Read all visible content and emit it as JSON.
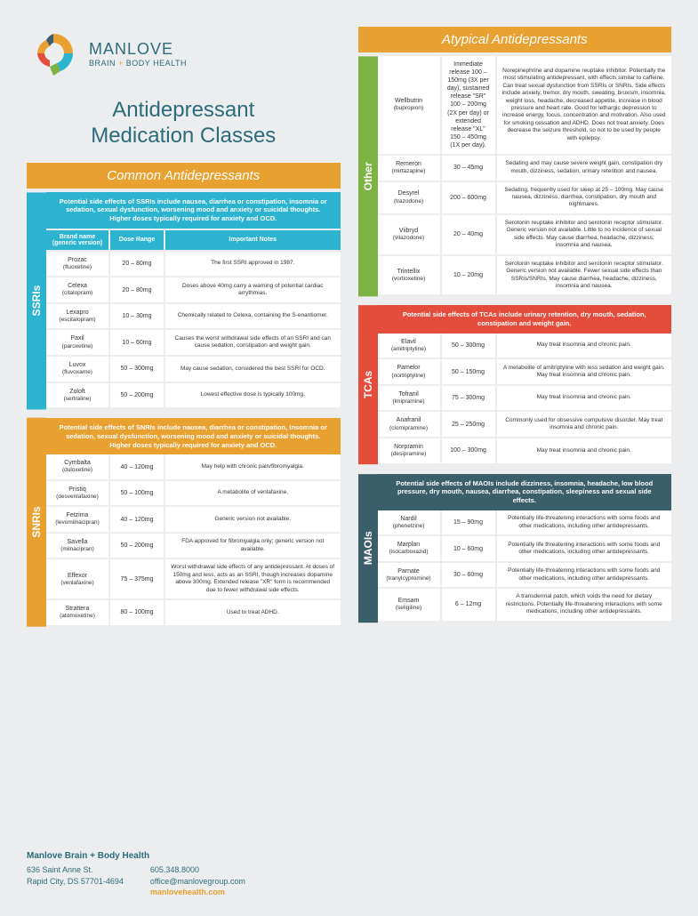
{
  "logo": {
    "main": "MANLOVE",
    "sub_a": "BRAIN ",
    "sub_plus": "+",
    "sub_b": " BODY HEALTH"
  },
  "title_a": "Antidepressant",
  "title_b": "Medication Classes",
  "hdr_common": "Common Antidepressants",
  "hdr_atypical": "Atypical Antidepressants",
  "col_headers": {
    "name": "Brand name (generic version)",
    "dose": "Dose Range",
    "notes": "Important Notes"
  },
  "colors": {
    "orange": "#e8a030",
    "teal": "#2c6b7a",
    "ssri": "#2bb3d0",
    "snri": "#e8a030",
    "other": "#7cb342",
    "tca": "#e44c3c",
    "maoi": "#3a5e6a"
  },
  "ssri": {
    "label": "SSRIs",
    "side_effects": "Potential side effects of SSRIs include nausea, diarrhea or constipation, insomnia or sedation, sexual dysfunction, worsening mood and anxiety or suicidal thoughts. Higher doses typically required for anxiety and OCD.",
    "meds": [
      {
        "brand": "Prozac",
        "generic": "(fluoxetine)",
        "dose": "20 – 80mg",
        "notes": "The first SSRI approved in 1987."
      },
      {
        "brand": "Celexa",
        "generic": "(citalopram)",
        "dose": "20 – 80mg",
        "notes": "Doses above 40mg carry a warning of potential cardiac arrythmias."
      },
      {
        "brand": "Lexapro",
        "generic": "(escitalopram)",
        "dose": "10 – 30mg",
        "notes": "Chemically related to Celexa, containing the S-enantiomer."
      },
      {
        "brand": "Paxil",
        "generic": "(paroxetine)",
        "dose": "10 – 60mg",
        "notes": "Causes the worst withdrawal side effects of an SSRI and can cause sedation, constipation and weight gain."
      },
      {
        "brand": "Luvox",
        "generic": "(fluvoxame)",
        "dose": "50 – 300mg",
        "notes": "May cause sedation, considered the best SSRI for OCD."
      },
      {
        "brand": "Zoloft",
        "generic": "(sertraline)",
        "dose": "50 – 200mg",
        "notes": "Lowest effective dose is typically 100mg."
      }
    ]
  },
  "snri": {
    "label": "SNRIs",
    "side_effects": "Potential side effects of SNRIs include nausea, diarrhea or constipation, insomnia or sedation, sexual dysfunction, worsening mood and anxiety or suicidal thoughts. Higher doses typically required for anxiety and OCD.",
    "meds": [
      {
        "brand": "Cymbalta",
        "generic": "(duloxetine)",
        "dose": "40 – 120mg",
        "notes": "May help with chronic pain/fibromyalgia."
      },
      {
        "brand": "Pristiq",
        "generic": "(desvenlafaxine)",
        "dose": "50 – 100mg",
        "notes": "A metabolite of venlafaxine."
      },
      {
        "brand": "Fetzima",
        "generic": "(levomilnacipran)",
        "dose": "40 – 120mg",
        "notes": "Generic version not available."
      },
      {
        "brand": "Savella",
        "generic": "(milnacipran)",
        "dose": "50 – 200mg",
        "notes": "FDA approved for fibromyalgia only; generic version not available."
      },
      {
        "brand": "Effexor",
        "generic": "(venlafaxine)",
        "dose": "75 – 375mg",
        "notes": "Worst withdrawal side effects of any antidepressant. At doses of 150mg and less, acts as an SSRI, though increases dopamine above 300mg. Extended release \"XR\" form is recommended due to fewer withdrawal side effects."
      },
      {
        "brand": "Strattera",
        "generic": "(atomoxetine)",
        "dose": "80 – 100mg",
        "notes": "Used to treat ADHD."
      }
    ]
  },
  "other": {
    "label": "Other",
    "meds": [
      {
        "brand": "Wellbutrin",
        "generic": "(bupropion)",
        "dose": "Immediate release 100 – 150mg (3X per day), sustained release \"SR\" 100 – 200mg (2X per day) or extended release \"XL\" 150 – 450mg (1X per day).",
        "notes": "Norepinephrine and dopamine reuptake inhibitor. Potentially the most stimulating antidepressant, with effects similar to caffeine. Can treat sexual dysfunction from SSRIs or SNRIs. Side effects include anxiety, tremor, dry mouth, sweating, bruxism, insomnia, weight loss, headache, decreased appetite, increase in blood pressure and heart rate. Good for lethargic depression to increase energy, focus, concentration and motivation. Also used for smoking cessation and ADHD. Does not treat anxiety. Does decrease the seizure threshold, so not to be used by people with epilepsy."
      },
      {
        "brand": "Remeron",
        "generic": "(mirtazapine)",
        "dose": "30 – 45mg",
        "notes": "Sedating and may cause severe weight gain, constipation dry mouth, dizziness, sedation, urinary retention and nausea."
      },
      {
        "brand": "Desyrel",
        "generic": "(trazodone)",
        "dose": "200 – 600mg",
        "notes": "Sedating, frequently used for sleep at 25 – 100mg. May cause nausea, dizziness, diarrhea, constipation, dry mouth and nightmares."
      },
      {
        "brand": "Viibryd",
        "generic": "(vilazodone)",
        "dose": "20 – 40mg",
        "notes": "Serotonin reuptake inhibitor and serotonin receptor stimulator. Generic version not available. Little to no incidence of sexual side effects. May cause diarrhea, headache, dizziness, insomnia and nausea."
      },
      {
        "brand": "Trintellix",
        "generic": "(vortioxetine)",
        "dose": "10 – 20mg",
        "notes": "Serotonin reuptake inhibitor and serotonin receptor stimulator. Generic version not available. Fewer sexual side effects than SSRIs/SNRIs. May cause diarrhea, headache, dizziness, insomnia and nausea."
      }
    ]
  },
  "tca": {
    "label": "TCAs",
    "side_effects": "Potential side effects of TCAs include urinary retention, dry mouth, sedation, constipation and weight gain.",
    "meds": [
      {
        "brand": "Elavil",
        "generic": "(amitriptyline)",
        "dose": "50 – 300mg",
        "notes": "May treat insomnia and chronic pain."
      },
      {
        "brand": "Pamelor",
        "generic": "(nortriptyline)",
        "dose": "50 – 150mg",
        "notes": "A metabolite of amitriptyline with less sedation and weight gain. May treat insomnia and chronic pain."
      },
      {
        "brand": "Tofranil",
        "generic": "(imipramine)",
        "dose": "75 – 300mg",
        "notes": "May treat insomnia and chronic pain."
      },
      {
        "brand": "Anafranil",
        "generic": "(clomipramine)",
        "dose": "25 – 250mg",
        "notes": "Commonly used for obsessive compulsive disorder. May treat insomnia and chronic pain."
      },
      {
        "brand": "Norpramin",
        "generic": "(desipramine)",
        "dose": "100 – 300mg",
        "notes": "May treat insomnia and chronic pain."
      }
    ]
  },
  "maoi": {
    "label": "MAOIs",
    "side_effects": "Potential side effects of MAOIs include dizziness, insomnia, headache, low blood pressure, dry mouth, nausea, diarrhea, constipation, sleepiness and sexual side effects.",
    "meds": [
      {
        "brand": "Nardil",
        "generic": "(phenelzine)",
        "dose": "15 – 90mg",
        "notes": "Potentially life-threatening interactions with some foods and other medications, including other antidepressants."
      },
      {
        "brand": "Marplan",
        "generic": "(isocarboxazid)",
        "dose": "10 – 60mg",
        "notes": "Potentially life threatening interactions with some foods and other medications, including other antidepressants."
      },
      {
        "brand": "Parnate",
        "generic": "(tranylcypromine)",
        "dose": "30 – 60mg",
        "notes": "Potentially life-threatening interactions with some foods and other medications, including other antidepressants."
      },
      {
        "brand": "Emsam",
        "generic": "(seligiline)",
        "dose": "6 – 12mg",
        "notes": "A transdermal patch, which voids the need for dietary restrictions. Potentially life-threatening interactions with some medications, including other antidepressants."
      }
    ]
  },
  "footer": {
    "title": "Manlove Brain + Body Health",
    "addr1": "636 Saint Anne St.",
    "addr2": "Rapid City, DS 57701-4694",
    "phone": "605.348.8000",
    "email": "office@manlovegroup.com",
    "site": "manlovehealth.com"
  }
}
